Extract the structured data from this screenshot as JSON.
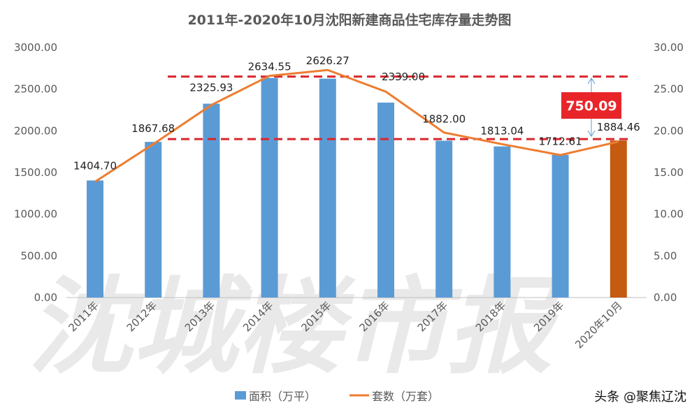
{
  "chart_data": {
    "type": "bar+line",
    "title": "2011年-2020年10月沈阳新建商品住宅库存量走势图",
    "categories": [
      "2011年",
      "2012年",
      "2013年",
      "2014年",
      "2015年",
      "2016年",
      "2017年",
      "2018年",
      "2019年",
      "2020年10月"
    ],
    "series": [
      {
        "name": "面积（万平）",
        "type": "bar",
        "axis": "left",
        "color": "#5b9bd5",
        "highlight_color": "#c55a11",
        "highlight_index": 9,
        "values": [
          1404.7,
          1867.68,
          2325.93,
          2634.55,
          2626.27,
          2339.0,
          1882.0,
          1813.04,
          1712.61,
          1884.46
        ]
      },
      {
        "name": "套数（万套）",
        "type": "line",
        "axis": "right",
        "color": "#ed7d31",
        "values": [
          13.9,
          18.4,
          23.1,
          26.6,
          27.3,
          24.7,
          19.8,
          18.4,
          17.1,
          18.7
        ]
      }
    ],
    "data_labels": [
      "1404.70",
      "1867.68",
      "2325.93",
      "2634.55",
      "2626.27",
      "2339.00",
      "1882.00",
      "1813.04",
      "1712.61",
      "1884.46"
    ],
    "y_left": {
      "range": [
        0,
        3000
      ],
      "ticks": [
        "0.00",
        "500.00",
        "1000.00",
        "1500.00",
        "2000.00",
        "2500.00",
        "3000.00"
      ]
    },
    "y_right": {
      "range": [
        0,
        30
      ],
      "ticks": [
        "0.00",
        "5.00",
        "10.00",
        "15.00",
        "20.00",
        "25.00",
        "30.00"
      ]
    },
    "reference_lines": {
      "values": [
        2634.55,
        1884.46
      ],
      "color": "#d9262b",
      "style": "dashed"
    },
    "annotation": {
      "text": "750.09",
      "bg": "#e8262a"
    },
    "grid": false,
    "legend": "bottom"
  },
  "watermark": "沈城楼市报",
  "source": "头条 @聚焦辽沈"
}
